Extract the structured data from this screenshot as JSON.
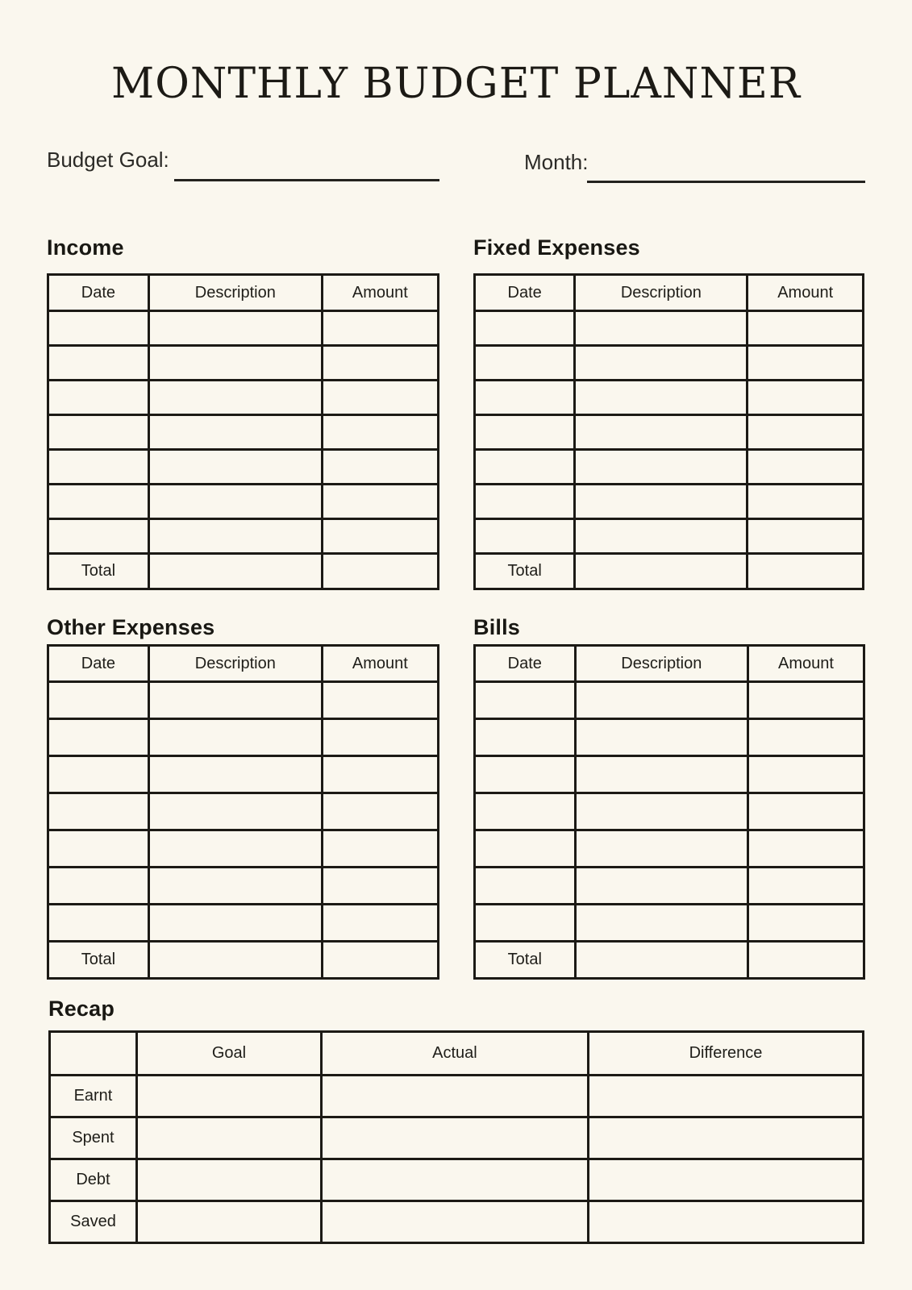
{
  "page": {
    "title": "MONTHLY BUDGET PLANNER",
    "background_color": "#FAF7EE",
    "ink_color": "#1C1A15"
  },
  "header_fields": {
    "budget_goal": {
      "label": "Budget Goal:",
      "value": ""
    },
    "month": {
      "label": "Month:",
      "value": ""
    }
  },
  "tables": [
    {
      "id": "income",
      "heading": "Income",
      "columns": [
        "Date",
        "Description",
        "Amount"
      ],
      "empty_row_count": 7,
      "footer_label": "Total",
      "footer_description": "",
      "footer_amount": ""
    },
    {
      "id": "fixed-expenses",
      "heading": "Fixed Expenses",
      "columns": [
        "Date",
        "Description",
        "Amount"
      ],
      "empty_row_count": 7,
      "footer_label": "Total",
      "footer_description": "",
      "footer_amount": ""
    },
    {
      "id": "other-expenses",
      "heading": "Other Expenses",
      "columns": [
        "Date",
        "Description",
        "Amount"
      ],
      "empty_row_count": 7,
      "footer_label": "Total",
      "footer_description": "",
      "footer_amount": ""
    },
    {
      "id": "bills",
      "heading": "Bills",
      "columns": [
        "Date",
        "Description",
        "Amount"
      ],
      "empty_row_count": 7,
      "footer_label": "Total",
      "footer_description": "",
      "footer_amount": ""
    }
  ],
  "recap": {
    "heading": "Recap",
    "column_headers": [
      "Goal",
      "Actual",
      "Difference"
    ],
    "row_labels": [
      "Earnt",
      "Spent",
      "Debt",
      "Saved"
    ],
    "cell_values": ""
  }
}
